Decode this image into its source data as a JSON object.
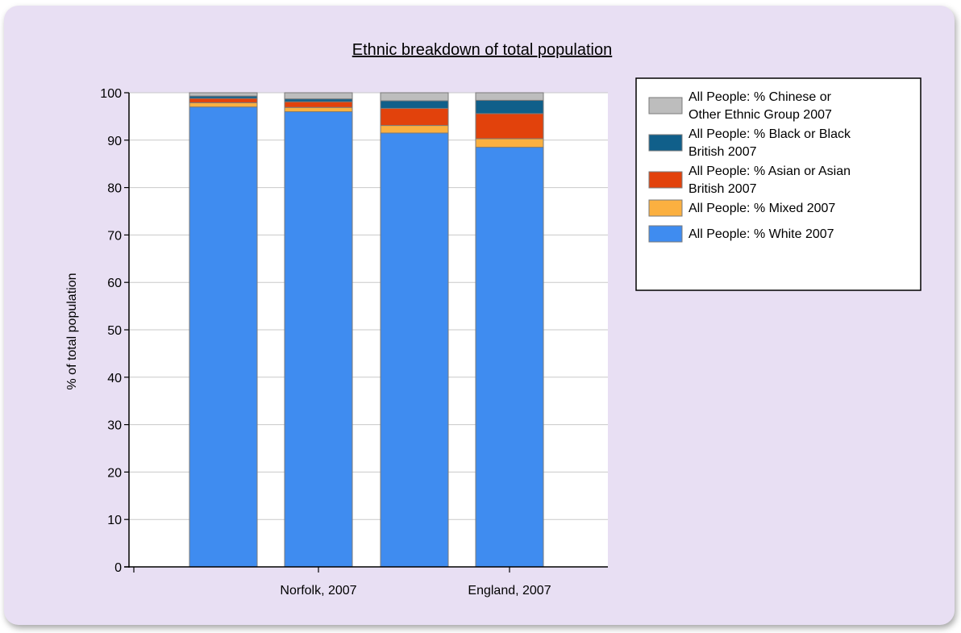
{
  "chart_data": {
    "type": "bar",
    "stacked": true,
    "title": "Ethnic breakdown of total population",
    "ylabel": "% of total population",
    "xlabel": "",
    "ylim": [
      0,
      100
    ],
    "yticks": [
      0,
      10,
      20,
      30,
      40,
      50,
      60,
      70,
      80,
      90,
      100
    ],
    "grid": true,
    "legend_position": "right",
    "categories": [
      "",
      "Norfolk, 2007",
      "",
      "England, 2007"
    ],
    "x_tick_labels": [
      "Norfolk, 2007",
      "England, 2007"
    ],
    "series": [
      {
        "name": "All People: % White 2007",
        "color": "#3f8cf0",
        "values": [
          97.0,
          96.0,
          91.5,
          88.5
        ]
      },
      {
        "name": "All People: % Mixed 2007",
        "color": "#fbb040",
        "values": [
          0.9,
          0.9,
          1.6,
          1.8
        ]
      },
      {
        "name": "All People: % Asian or Asian British 2007",
        "color": "#e2420c",
        "values": [
          0.9,
          1.2,
          3.6,
          5.3
        ]
      },
      {
        "name": "All People: % Black or Black British 2007",
        "color": "#105f8a",
        "values": [
          0.5,
          0.6,
          1.6,
          2.8
        ]
      },
      {
        "name": "All People: % Chinese or Other Ethnic Group 2007",
        "color": "#bdbdbd",
        "values": [
          0.7,
          1.3,
          1.7,
          1.6
        ]
      }
    ]
  }
}
